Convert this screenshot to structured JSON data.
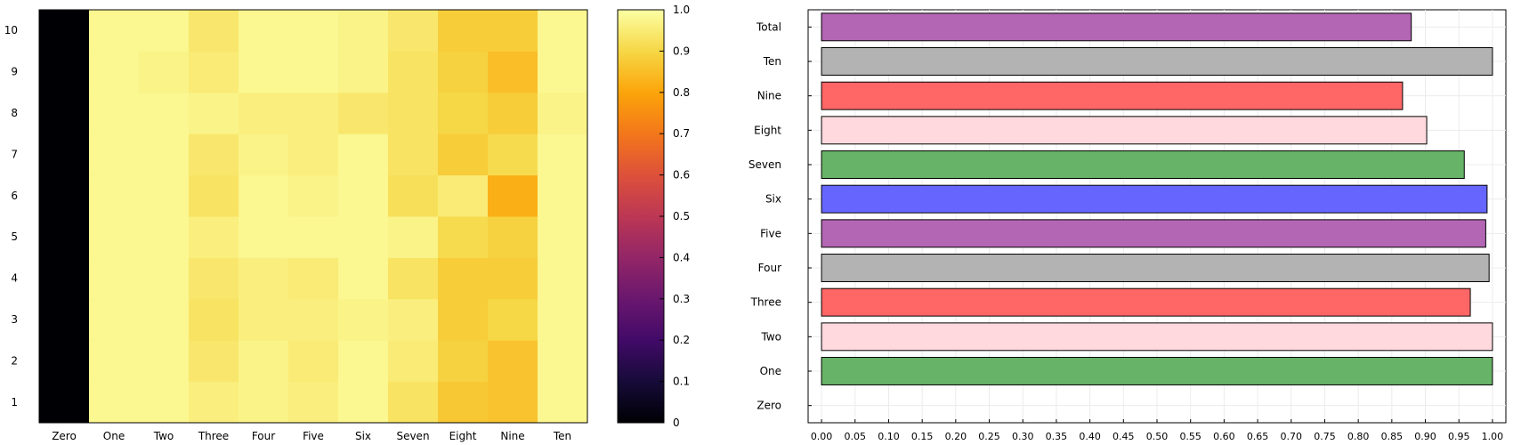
{
  "chart_data": [
    {
      "type": "heatmap",
      "x_categories": [
        "Zero",
        "One",
        "Two",
        "Three",
        "Four",
        "Five",
        "Six",
        "Seven",
        "Eight",
        "Nine",
        "Ten"
      ],
      "y_categories": [
        "1",
        "2",
        "3",
        "4",
        "5",
        "6",
        "7",
        "8",
        "9",
        "10"
      ],
      "values": [
        [
          0,
          0.98,
          0.98,
          0.96,
          0.97,
          0.96,
          0.98,
          0.93,
          0.87,
          0.86,
          0.98
        ],
        [
          0,
          0.98,
          0.98,
          0.94,
          0.97,
          0.95,
          0.98,
          0.95,
          0.89,
          0.86,
          0.98
        ],
        [
          0,
          0.98,
          0.98,
          0.93,
          0.96,
          0.96,
          0.97,
          0.96,
          0.88,
          0.9,
          0.98
        ],
        [
          0,
          0.98,
          0.98,
          0.94,
          0.96,
          0.95,
          0.98,
          0.93,
          0.88,
          0.88,
          0.98
        ],
        [
          0,
          0.98,
          0.98,
          0.96,
          0.98,
          0.98,
          0.98,
          0.97,
          0.91,
          0.89,
          0.98
        ],
        [
          0,
          0.98,
          0.98,
          0.93,
          0.98,
          0.97,
          0.98,
          0.92,
          0.95,
          0.82,
          0.98
        ],
        [
          0,
          0.98,
          0.98,
          0.94,
          0.97,
          0.96,
          0.98,
          0.93,
          0.88,
          0.91,
          0.98
        ],
        [
          0,
          0.98,
          0.98,
          0.97,
          0.96,
          0.96,
          0.94,
          0.93,
          0.9,
          0.88,
          0.97
        ],
        [
          0,
          0.98,
          0.97,
          0.95,
          0.98,
          0.98,
          0.97,
          0.93,
          0.89,
          0.85,
          0.98
        ],
        [
          0,
          0.98,
          0.98,
          0.94,
          0.98,
          0.98,
          0.97,
          0.94,
          0.88,
          0.88,
          0.98
        ]
      ],
      "colorbar": {
        "min": 0,
        "max": 1,
        "ticks": [
          "0",
          "0.1",
          "0.2",
          "0.3",
          "0.4",
          "0.5",
          "0.6",
          "0.7",
          "0.8",
          "0.9",
          "1.0"
        ]
      },
      "colormap": "inferno-yellow"
    },
    {
      "type": "bar",
      "orientation": "horizontal",
      "categories": [
        "Zero",
        "One",
        "Two",
        "Three",
        "Four",
        "Five",
        "Six",
        "Seven",
        "Eight",
        "Nine",
        "Ten",
        "Total"
      ],
      "values": [
        0,
        1.0,
        1.0,
        0.967,
        0.995,
        0.99,
        0.992,
        0.958,
        0.902,
        0.866,
        1.0,
        0.879
      ],
      "colors": [
        "#ffffff",
        "#67b367",
        "#ffd9de",
        "#ff6666",
        "#b3b3b3",
        "#b366b3",
        "#6666ff",
        "#67b367",
        "#ffd9de",
        "#ff6666",
        "#b3b3b3",
        "#b366b3"
      ],
      "xlim": [
        -0.02,
        1.02
      ],
      "x_ticks": [
        "0.00",
        "0.05",
        "0.10",
        "0.15",
        "0.20",
        "0.25",
        "0.30",
        "0.35",
        "0.40",
        "0.45",
        "0.50",
        "0.55",
        "0.60",
        "0.65",
        "0.70",
        "0.75",
        "0.80",
        "0.85",
        "0.90",
        "0.95",
        "1.00"
      ],
      "grid": true
    }
  ]
}
